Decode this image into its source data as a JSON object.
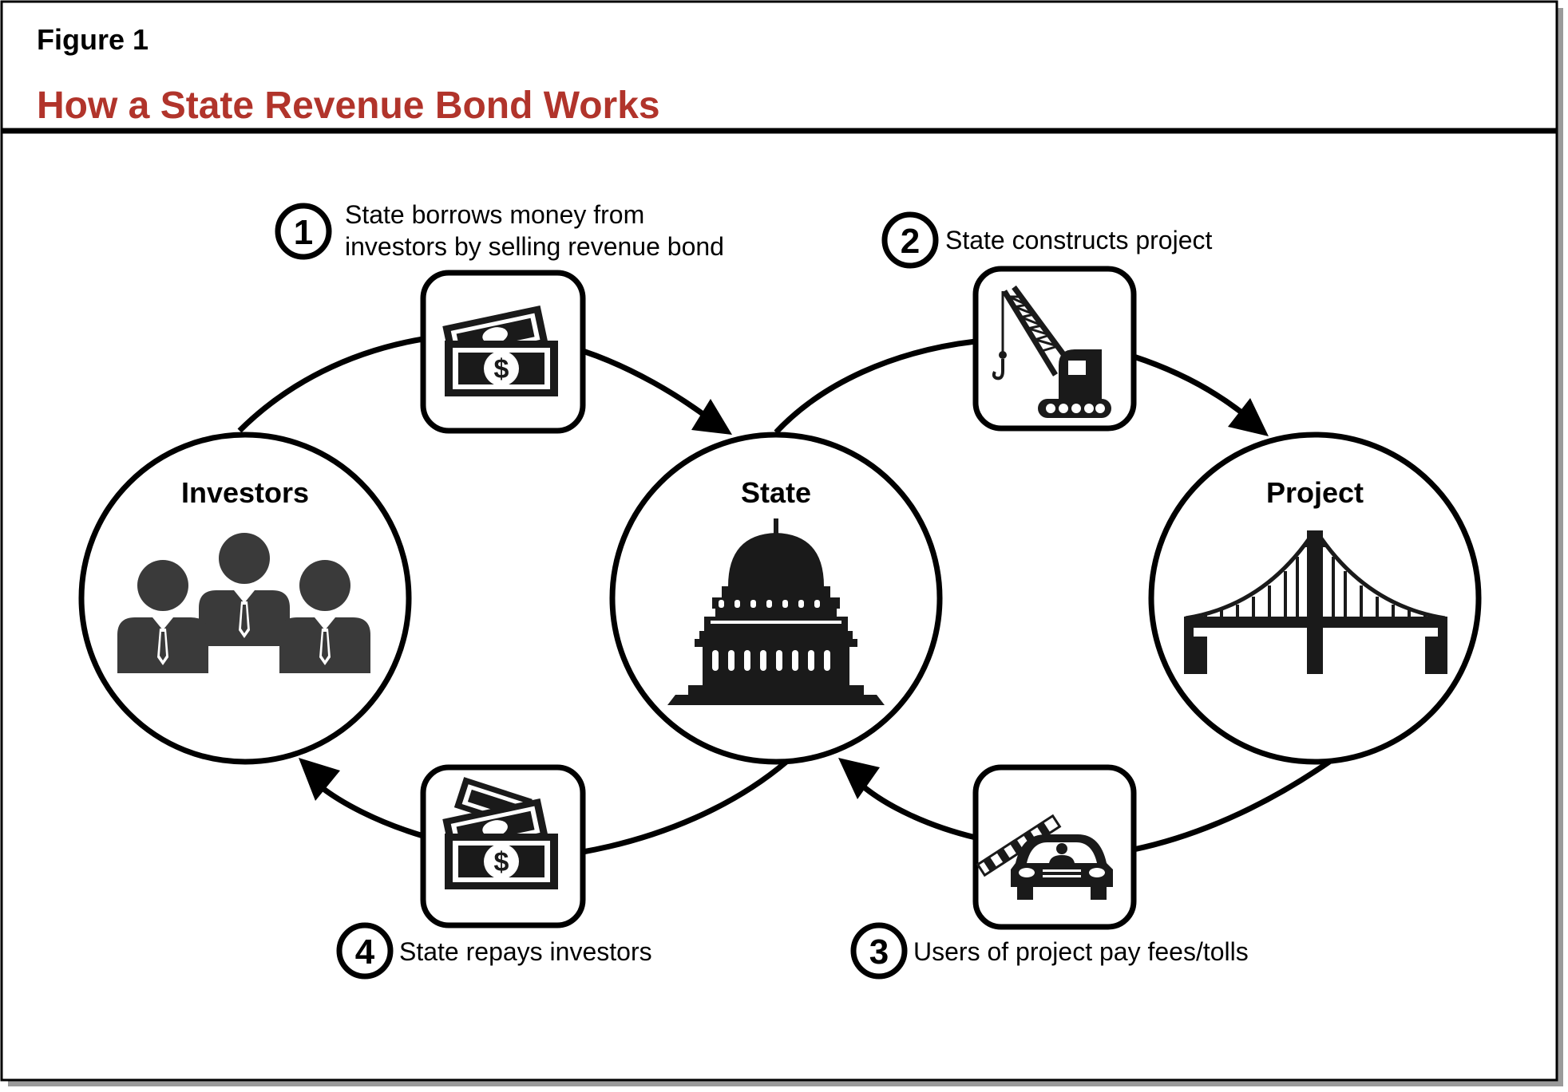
{
  "figure": {
    "label": "Figure 1",
    "title": "How a State Revenue Bond Works"
  },
  "colors": {
    "title": "#b1342b",
    "line": "#000000",
    "icon_fill": "#1a1a1a",
    "people_fill": "#3a3a3a"
  },
  "nodes": {
    "investors": {
      "label": "Investors",
      "icon": "business-people-icon"
    },
    "state": {
      "label": "State",
      "icon": "capitol-building-icon"
    },
    "project": {
      "label": "Project",
      "icon": "suspension-bridge-icon"
    }
  },
  "steps": [
    {
      "number": "1",
      "lines": [
        "State borrows money from",
        "investors by selling revenue bond"
      ],
      "icon": "cash-stack-icon"
    },
    {
      "number": "2",
      "lines": [
        "State constructs project"
      ],
      "icon": "construction-crane-icon"
    },
    {
      "number": "3",
      "lines": [
        "Users of project pay fees/tolls"
      ],
      "icon": "car-toll-gate-icon"
    },
    {
      "number": "4",
      "lines": [
        "State repays investors"
      ],
      "icon": "cash-stack-icon"
    }
  ]
}
